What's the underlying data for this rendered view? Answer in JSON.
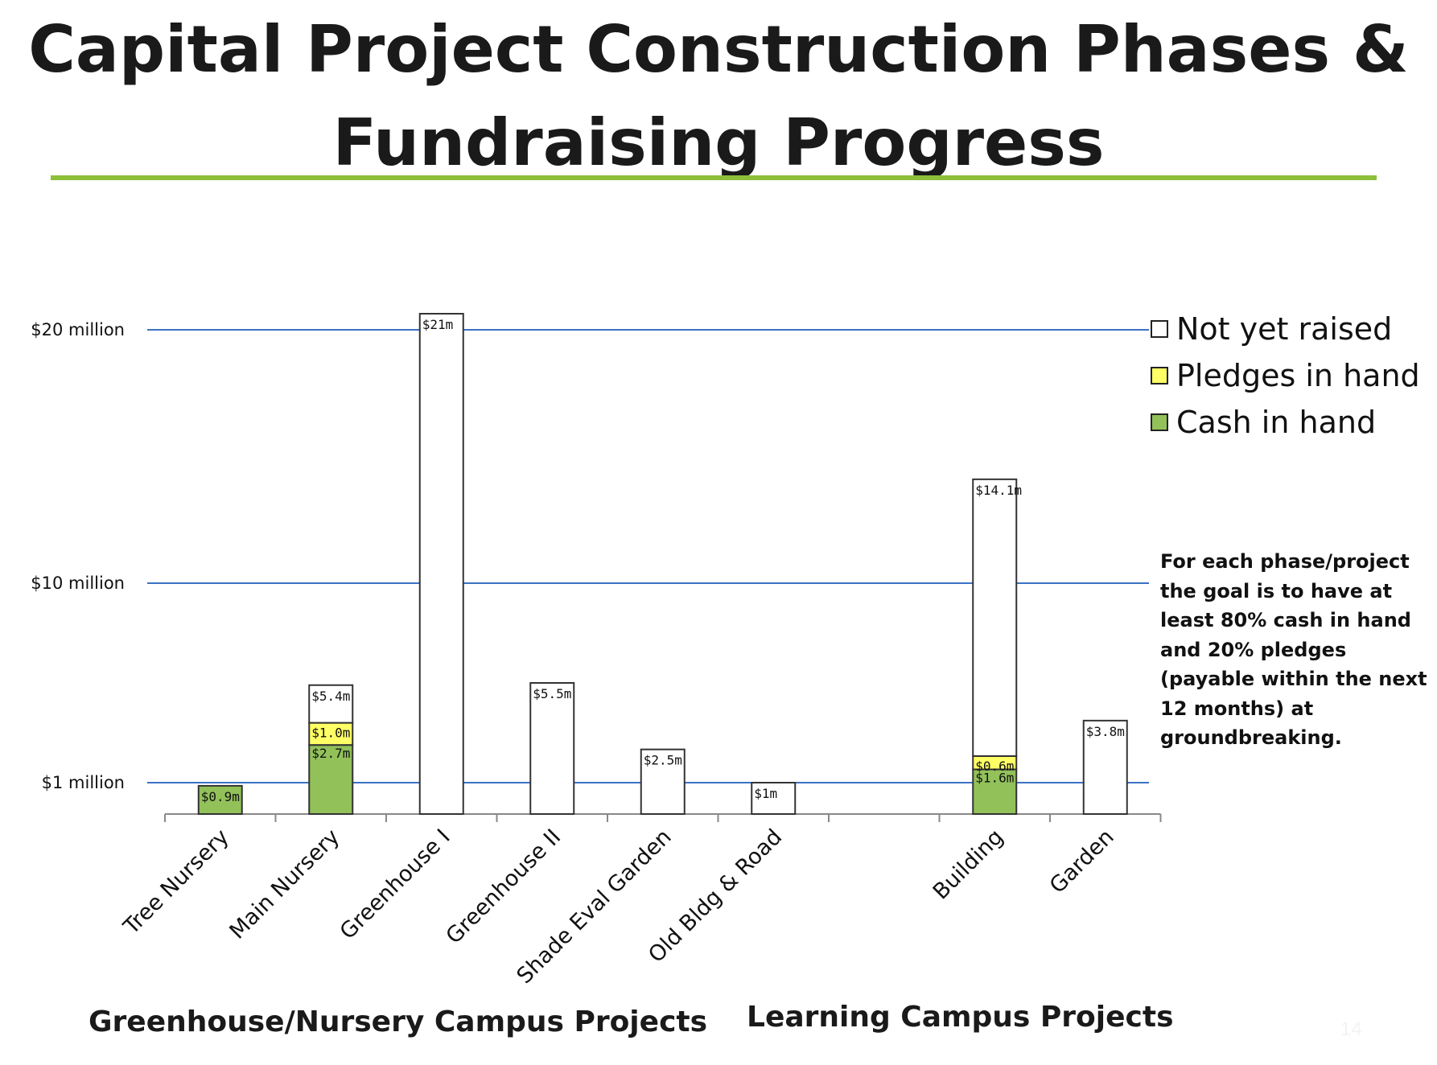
{
  "title_lines": [
    "Capital Project Construction Phases &",
    "Fundraising Progress"
  ],
  "page_number": "14",
  "colors": {
    "not_yet_raised": "#ffffff",
    "pledges": "#ffff66",
    "cash": "#92c15a",
    "reference_line": "#3a72c4",
    "title_rule": "#8dbf3a"
  },
  "legend": {
    "items": [
      {
        "label": "Not yet raised",
        "color": "#ffffff"
      },
      {
        "label": "Pledges in hand",
        "color": "#ffff66"
      },
      {
        "label": "Cash in hand",
        "color": "#92c15a"
      }
    ]
  },
  "note": "For each phase/project the goal is to have at least 80% cash in hand and 20% pledges (payable within the next 12 months) at groundbreaking.",
  "groups": {
    "left": "Greenhouse/Nursery Campus Projects",
    "right": "Learning Campus Projects"
  },
  "chart_data": {
    "type": "bar",
    "stacked": true,
    "scale": "nonlinear (reference lines at $1 million, $10 million, $20 million)",
    "reference_lines": [
      {
        "label": "$1 million",
        "value": 1
      },
      {
        "label": "$10 million",
        "value": 10
      },
      {
        "label": "$20 million",
        "value": 20
      }
    ],
    "categories": [
      "Tree Nursery",
      "Main Nursery",
      "Greenhouse I",
      "Greenhouse II",
      "Shade Eval Garden",
      "Old Bldg & Road",
      "",
      "Building",
      "Garden"
    ],
    "series": [
      {
        "name": "Cash in hand",
        "values": [
          0.9,
          2.7,
          0,
          0,
          0,
          0,
          null,
          1.6,
          0
        ]
      },
      {
        "name": "Pledges in hand",
        "values": [
          0,
          1.0,
          0,
          0,
          0,
          0,
          null,
          0.6,
          0
        ]
      },
      {
        "name": "Not yet raised",
        "values": [
          0,
          1.7,
          21,
          5.5,
          2.5,
          1,
          null,
          11.9,
          3.8
        ]
      }
    ],
    "totals": [
      0.9,
      5.4,
      21,
      5.5,
      2.5,
      1,
      null,
      14.1,
      3.8
    ],
    "data_labels": [
      [
        "$0.9m"
      ],
      [
        "$5.4m",
        "$1.0m",
        "$2.7m"
      ],
      [
        "$21m"
      ],
      [
        "$5.5m"
      ],
      [
        "$2.5m"
      ],
      [
        "$1m"
      ],
      [],
      [
        "$14.1m",
        "$0.6m",
        "$1.6m"
      ],
      [
        "$3.8m"
      ]
    ],
    "ylabel": "",
    "xlabel": "",
    "legend_position": "top-right"
  }
}
